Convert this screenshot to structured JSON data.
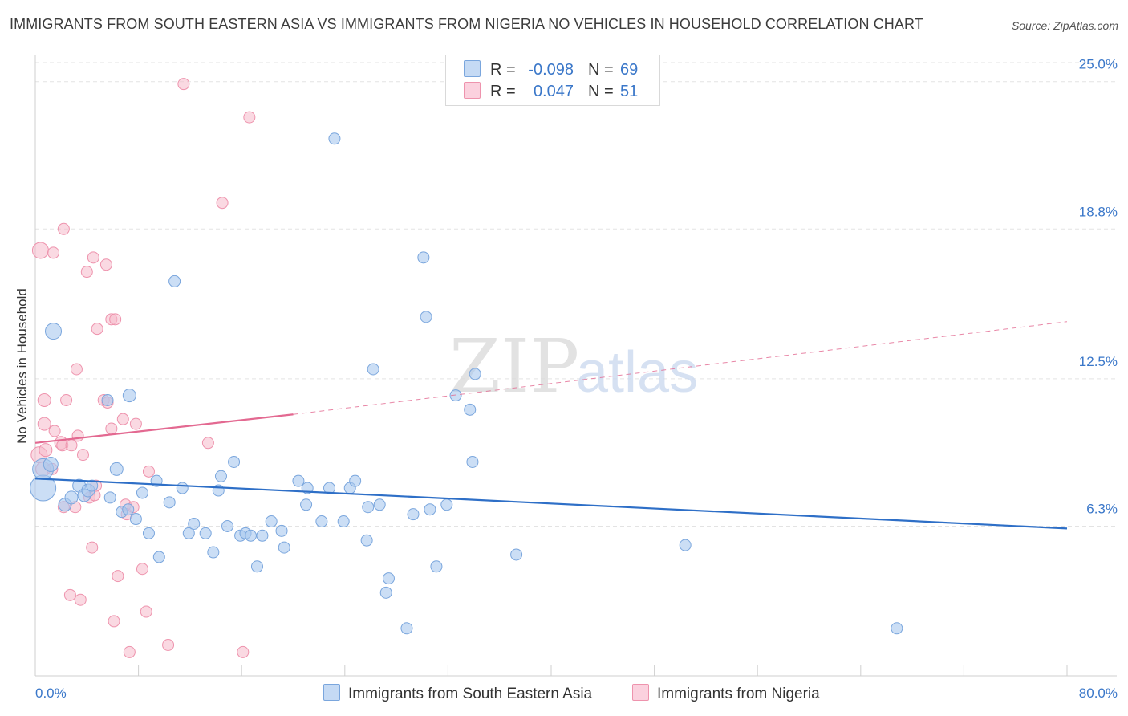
{
  "title": "IMMIGRANTS FROM SOUTH EASTERN ASIA VS IMMIGRANTS FROM NIGERIA NO VEHICLES IN HOUSEHOLD CORRELATION CHART",
  "source": "Source: ZipAtlas.com",
  "watermark": {
    "zip": "ZIP",
    "atlas": "atlas"
  },
  "legend": {
    "rows": [
      {
        "r_label": "R =",
        "r_value": "-0.098",
        "n_label": "N =",
        "n_value": "69"
      },
      {
        "r_label": "R =",
        "r_value": "0.047",
        "n_label": "N =",
        "n_value": "51"
      }
    ]
  },
  "bottom_legend": {
    "items": [
      "Immigrants from South Eastern Asia",
      "Immigrants from Nigeria"
    ]
  },
  "colors": {
    "blue_fill": "#a9c8ef",
    "blue_stroke": "#7aa6dd",
    "blue_line": "#2e6fc7",
    "pink_fill": "#f6b9cb",
    "pink_stroke": "#ee93ad",
    "pink_line": "#e36991",
    "tick_label": "#3a77c9",
    "grid": "#e3e3e3"
  },
  "chart_data": {
    "type": "scatter",
    "title": "IMMIGRANTS FROM SOUTH EASTERN ASIA VS IMMIGRANTS FROM NIGERIA NO VEHICLES IN HOUSEHOLD CORRELATION CHART",
    "xlabel": "",
    "ylabel": "No Vehicles in Household",
    "xlim": [
      0,
      80
    ],
    "ylim": [
      0,
      25.8
    ],
    "x_tick_labels": [
      "0.0%",
      "80.0%"
    ],
    "y_ticks": [
      6.3,
      12.5,
      18.8,
      25.0
    ],
    "y_tick_labels": [
      "6.3%",
      "12.5%",
      "18.8%",
      "25.0%"
    ],
    "grid": true,
    "series": [
      {
        "name": "Immigrants from South Eastern Asia",
        "color": "#a9c8ef",
        "r": -0.098,
        "n": 69,
        "trend": {
          "x": [
            0,
            80
          ],
          "y": [
            8.3,
            6.2
          ],
          "style": "solid"
        },
        "points": [
          [
            0.6,
            7.9,
            16
          ],
          [
            0.6,
            8.7,
            13
          ],
          [
            1.4,
            14.5,
            10
          ],
          [
            1.2,
            8.9,
            9
          ],
          [
            2.3,
            7.2,
            8
          ],
          [
            2.8,
            7.5,
            8
          ],
          [
            3.4,
            8.0,
            8
          ],
          [
            3.8,
            7.6,
            8
          ],
          [
            4.1,
            7.8,
            8
          ],
          [
            4.4,
            8.0,
            7
          ],
          [
            5.6,
            11.6,
            7
          ],
          [
            5.8,
            7.5,
            7
          ],
          [
            6.3,
            8.7,
            8
          ],
          [
            6.7,
            6.9,
            7
          ],
          [
            7.2,
            7.0,
            7
          ],
          [
            7.3,
            11.8,
            8
          ],
          [
            7.8,
            6.6,
            7
          ],
          [
            8.3,
            7.7,
            7
          ],
          [
            8.8,
            6.0,
            7
          ],
          [
            9.4,
            8.2,
            7
          ],
          [
            9.6,
            5.0,
            7
          ],
          [
            10.4,
            7.3,
            7
          ],
          [
            10.8,
            16.6,
            7
          ],
          [
            11.4,
            7.9,
            7
          ],
          [
            11.9,
            6.0,
            7
          ],
          [
            12.3,
            6.4,
            7
          ],
          [
            13.2,
            6.0,
            7
          ],
          [
            13.8,
            5.2,
            7
          ],
          [
            14.2,
            7.8,
            7
          ],
          [
            14.4,
            8.4,
            7
          ],
          [
            14.9,
            6.3,
            7
          ],
          [
            15.4,
            9.0,
            7
          ],
          [
            15.9,
            5.9,
            7
          ],
          [
            16.3,
            6.0,
            7
          ],
          [
            16.7,
            5.9,
            7
          ],
          [
            17.2,
            4.6,
            7
          ],
          [
            17.6,
            5.9,
            7
          ],
          [
            18.3,
            6.5,
            7
          ],
          [
            19.1,
            6.1,
            7
          ],
          [
            19.3,
            5.4,
            7
          ],
          [
            20.4,
            8.2,
            7
          ],
          [
            21.0,
            7.2,
            7
          ],
          [
            21.1,
            7.9,
            7
          ],
          [
            22.2,
            6.5,
            7
          ],
          [
            22.8,
            7.9,
            7
          ],
          [
            23.9,
            6.5,
            7
          ],
          [
            24.4,
            7.9,
            7
          ],
          [
            24.8,
            8.2,
            7
          ],
          [
            25.7,
            5.7,
            7
          ],
          [
            25.8,
            7.1,
            7
          ],
          [
            26.2,
            12.9,
            7
          ],
          [
            26.7,
            7.2,
            7
          ],
          [
            27.2,
            3.5,
            7
          ],
          [
            27.4,
            4.1,
            7
          ],
          [
            23.2,
            22.6,
            7
          ],
          [
            28.8,
            2.0,
            7
          ],
          [
            29.3,
            6.8,
            7
          ],
          [
            30.1,
            17.6,
            7
          ],
          [
            30.3,
            15.1,
            7
          ],
          [
            30.6,
            7.0,
            7
          ],
          [
            31.1,
            4.6,
            7
          ],
          [
            31.9,
            7.2,
            7
          ],
          [
            32.6,
            11.8,
            7
          ],
          [
            33.7,
            11.2,
            7
          ],
          [
            33.9,
            9.0,
            7
          ],
          [
            34.1,
            12.7,
            7
          ],
          [
            37.3,
            5.1,
            7
          ],
          [
            50.4,
            5.5,
            7
          ],
          [
            66.8,
            2.0,
            7
          ]
        ]
      },
      {
        "name": "Immigrants from Nigeria",
        "color": "#f6b9cb",
        "r": 0.047,
        "n": 51,
        "trend": {
          "x": [
            0,
            20,
            80
          ],
          "y": [
            9.8,
            11.0,
            14.9
          ],
          "style": "solid-then-dashed"
        },
        "points": [
          [
            0.3,
            9.3,
            10
          ],
          [
            0.4,
            17.9,
            10
          ],
          [
            0.6,
            8.7,
            9
          ],
          [
            0.7,
            11.6,
            8
          ],
          [
            0.7,
            10.6,
            8
          ],
          [
            0.8,
            9.5,
            8
          ],
          [
            1.3,
            8.7,
            7
          ],
          [
            1.4,
            17.8,
            7
          ],
          [
            1.5,
            10.3,
            7
          ],
          [
            2.0,
            9.8,
            8
          ],
          [
            2.1,
            9.7,
            7
          ],
          [
            2.2,
            7.1,
            7
          ],
          [
            2.2,
            18.8,
            7
          ],
          [
            2.4,
            11.6,
            7
          ],
          [
            2.7,
            3.4,
            7
          ],
          [
            2.8,
            9.7,
            7
          ],
          [
            3.1,
            7.1,
            7
          ],
          [
            3.2,
            12.9,
            7
          ],
          [
            3.3,
            10.1,
            7
          ],
          [
            3.5,
            3.2,
            7
          ],
          [
            3.7,
            9.3,
            7
          ],
          [
            4.0,
            17.0,
            7
          ],
          [
            4.2,
            7.5,
            7
          ],
          [
            4.4,
            5.4,
            7
          ],
          [
            4.5,
            17.6,
            7
          ],
          [
            4.6,
            7.6,
            7
          ],
          [
            4.7,
            8.0,
            7
          ],
          [
            4.8,
            14.6,
            7
          ],
          [
            5.3,
            11.6,
            7
          ],
          [
            5.5,
            17.3,
            7
          ],
          [
            5.6,
            11.5,
            7
          ],
          [
            5.9,
            10.4,
            7
          ],
          [
            5.9,
            15.0,
            7
          ],
          [
            6.1,
            2.3,
            7
          ],
          [
            6.2,
            15.0,
            7
          ],
          [
            6.4,
            4.2,
            7
          ],
          [
            6.8,
            10.8,
            7
          ],
          [
            7.0,
            7.2,
            7
          ],
          [
            7.1,
            6.8,
            7
          ],
          [
            7.3,
            1.0,
            7
          ],
          [
            7.6,
            7.1,
            7
          ],
          [
            7.8,
            10.6,
            7
          ],
          [
            8.3,
            4.5,
            7
          ],
          [
            8.6,
            2.7,
            7
          ],
          [
            8.8,
            8.6,
            7
          ],
          [
            10.3,
            1.3,
            7
          ],
          [
            11.5,
            24.9,
            7
          ],
          [
            13.4,
            9.8,
            7
          ],
          [
            14.5,
            19.9,
            7
          ],
          [
            16.1,
            1.0,
            7
          ],
          [
            16.6,
            23.5,
            7
          ]
        ]
      }
    ]
  }
}
